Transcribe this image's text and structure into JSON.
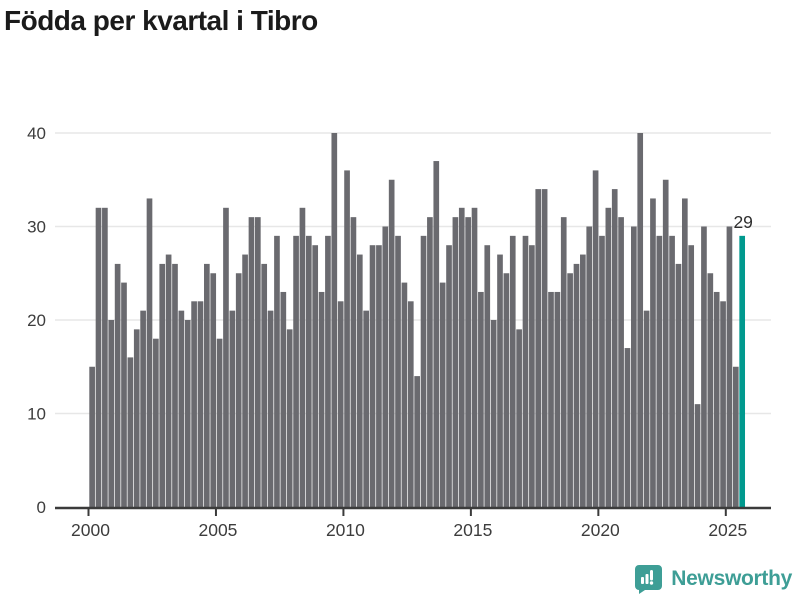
{
  "title": "Födda per kvartal i Tibro",
  "annotation": {
    "label": "29"
  },
  "brand": {
    "name": "Newsworthy",
    "icon": "newsworthy-speech-bubble-chart-icon"
  },
  "colors": {
    "bar": "#6A6A6F",
    "highlight": "#00998E",
    "grid": "#E7E7E7",
    "axis": "#3B3B3B",
    "tick_text": "#3D3D3D",
    "title_text": "#1B1B1B",
    "annotation_text": "#2E2E2E",
    "brand_teal": "#3E9E96",
    "background": "#FFFFFF"
  },
  "chart_data": {
    "type": "bar",
    "title": "Födda per kvartal i Tibro",
    "series_name": "Födda per kvartal",
    "start": "2000-Q1",
    "end": "2025-Q3",
    "freq": "quarterly",
    "values": [
      15,
      32,
      32,
      20,
      26,
      24,
      16,
      19,
      21,
      33,
      18,
      26,
      27,
      26,
      21,
      20,
      22,
      22,
      26,
      25,
      18,
      32,
      21,
      25,
      27,
      31,
      31,
      26,
      21,
      29,
      23,
      19,
      29,
      32,
      29,
      28,
      23,
      29,
      40,
      22,
      36,
      31,
      27,
      21,
      28,
      28,
      30,
      35,
      29,
      24,
      22,
      14,
      29,
      31,
      37,
      24,
      28,
      31,
      32,
      31,
      32,
      23,
      28,
      20,
      27,
      25,
      29,
      19,
      29,
      28,
      34,
      34,
      23,
      23,
      31,
      25,
      26,
      27,
      30,
      36,
      29,
      32,
      34,
      31,
      17,
      30,
      40,
      21,
      33,
      29,
      35,
      29,
      26,
      33,
      28,
      11,
      30,
      25,
      23,
      22,
      30,
      15,
      29
    ],
    "highlight_index": 102,
    "highlight_label": "29",
    "xtick_labels": [
      "2000",
      "2005",
      "2010",
      "2015",
      "2020",
      "2025"
    ],
    "ytick_labels": [
      "0",
      "10",
      "20",
      "30",
      "40"
    ],
    "ylim": [
      0,
      40
    ],
    "grid": "horizontal",
    "legend": "none"
  }
}
